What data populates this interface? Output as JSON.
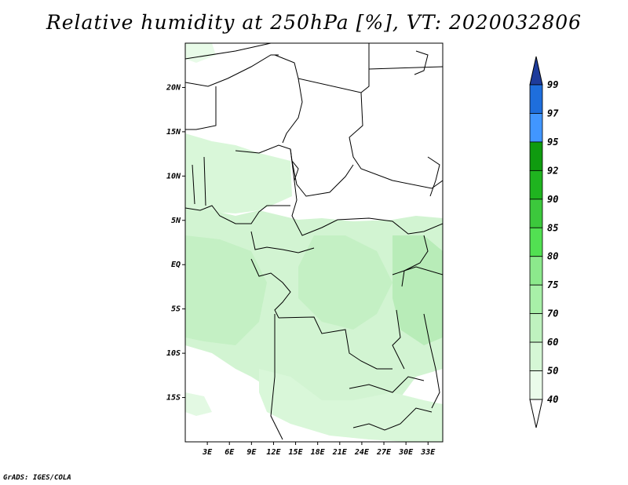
{
  "title": "Relative humidity at 250hPa [%], VT: 2020032806",
  "credit": "GrADS: IGES/COLA",
  "map": {
    "lat_labels": [
      "20N",
      "15N",
      "10N",
      "5N",
      "EQ",
      "5S",
      "10S",
      "15S"
    ],
    "lat_values": [
      20,
      15,
      10,
      5,
      0,
      -5,
      -10,
      -15
    ],
    "lon_labels": [
      "3E",
      "6E",
      "9E",
      "12E",
      "15E",
      "18E",
      "21E",
      "24E",
      "27E",
      "30E",
      "33E"
    ],
    "lon_values": [
      3,
      6,
      9,
      12,
      15,
      18,
      21,
      24,
      27,
      30,
      33
    ],
    "extent": {
      "lon_min": 0,
      "lon_max": 35,
      "lat_min": -20,
      "lat_max": 25
    },
    "field": "relative humidity",
    "level": "250hPa",
    "units": "%"
  },
  "colorbar": {
    "labels": [
      "99",
      "97",
      "95",
      "92",
      "90",
      "85",
      "80",
      "75",
      "70",
      "60",
      "50",
      "40"
    ],
    "colors": [
      "#1e6edc",
      "#4196ff",
      "#0f9b0f",
      "#1fb41f",
      "#3cc83c",
      "#52e052",
      "#8ce98c",
      "#a8f0a8",
      "#bff2bf",
      "#d5f7d5",
      "#eafbea"
    ],
    "top_color": "#1e3c9c",
    "bottom_color": "#ffffff"
  }
}
